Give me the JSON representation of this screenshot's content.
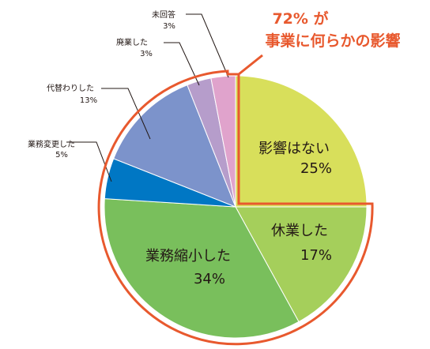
{
  "chart_data": {
    "type": "pie",
    "title": "",
    "headline": [
      "72% が",
      "事業に何らかの影響"
    ],
    "headline_color": "#e8592e",
    "start_angle_deg": 0,
    "direction": "clockwise",
    "slices": [
      {
        "label": "影響はない",
        "value": 25,
        "value_label": "25%",
        "color": "#d8df5b",
        "placement": "inside"
      },
      {
        "label": "休業した",
        "value": 17,
        "value_label": "17%",
        "color": "#a5cf5b",
        "placement": "inside"
      },
      {
        "label": "業務縮小した",
        "value": 34,
        "value_label": "34%",
        "color": "#79bf5c",
        "placement": "inside"
      },
      {
        "label": "業務変更した",
        "value": 5,
        "value_label": "5%",
        "color": "#0077c4",
        "placement": "outside"
      },
      {
        "label": "代替わりした",
        "value": 13,
        "value_label": "13%",
        "color": "#7c93cb",
        "placement": "outside"
      },
      {
        "label": "廃業した",
        "value": 3,
        "value_label": "3%",
        "color": "#b69dcb",
        "placement": "outside"
      },
      {
        "label": "未回答",
        "value": 3,
        "value_label": "3%",
        "color": "#e0a3cc",
        "placement": "outside"
      }
    ],
    "highlight": {
      "excluded_slice": "影響はない",
      "outline_color": "#e8592e"
    }
  }
}
